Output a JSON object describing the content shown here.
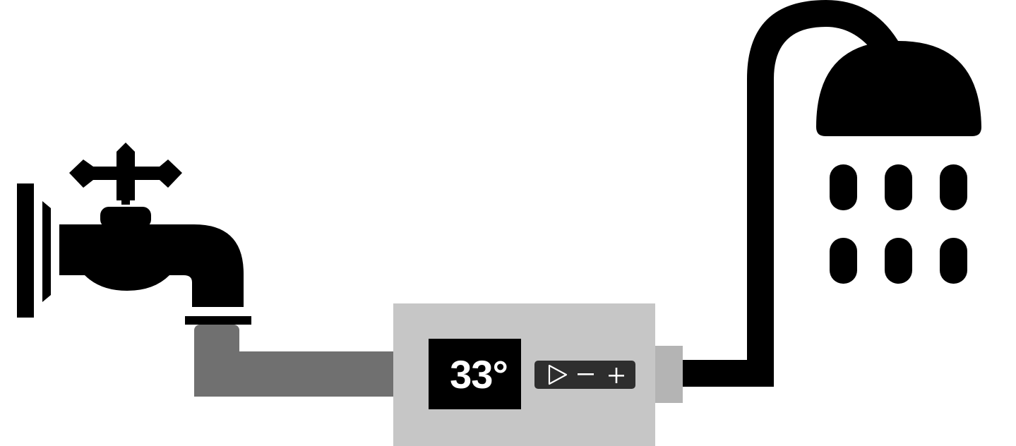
{
  "controller": {
    "temperature": "33°",
    "play_symbol": "▷",
    "minus_symbol": "−",
    "plus_symbol": "+"
  },
  "icons": {
    "source": "faucet-icon",
    "destination": "shower-head-icon"
  },
  "colors": {
    "icon": "#000000",
    "hose": "#707070",
    "device_body": "#c6c6c6",
    "device_connector": "#b4b4b4",
    "display_bg": "#000000",
    "control_panel_bg": "#2e2e2e"
  }
}
